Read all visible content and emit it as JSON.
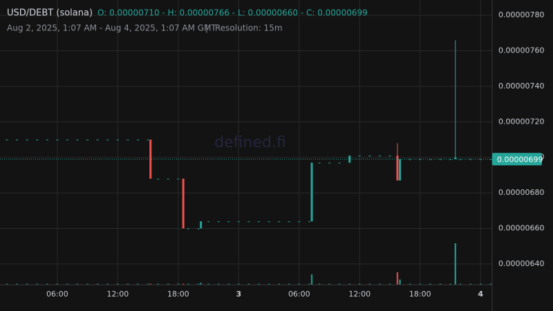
{
  "chart_data": {
    "type": "candlestick",
    "title": "USD/DEBT (solana)",
    "ohlc_text": "O: 0.00000710 - H: 0.00000766 - L: 0.00000660 - C: 0.00000699",
    "subtitle": "Aug 2, 2025, 1:07 AM - Aug 4, 2025, 1:07 AM GMT",
    "separator": "|",
    "resolution": "Resolution: 15m",
    "watermark": "defined.fi",
    "up_color": "#26a69a",
    "down_color": "#ef5350",
    "grid": true,
    "x": [
      1,
      2,
      3,
      4,
      5,
      6,
      7,
      8,
      9,
      10,
      11,
      12,
      13,
      14,
      15,
      15.25,
      16,
      17,
      18,
      18.5,
      19,
      20,
      20.25,
      21,
      22,
      23,
      24,
      25,
      26,
      27,
      28,
      29,
      30,
      31,
      31.25,
      32,
      33,
      34,
      35,
      36,
      37,
      38,
      39,
      39.75,
      40,
      41,
      42,
      43,
      44,
      45,
      45.5,
      46,
      47,
      48,
      49
    ],
    "open": [
      7.1e-06,
      7.1e-06,
      7.1e-06,
      7.1e-06,
      7.1e-06,
      7.1e-06,
      7.1e-06,
      7.1e-06,
      7.1e-06,
      7.1e-06,
      7.1e-06,
      7.1e-06,
      7.1e-06,
      7.1e-06,
      7.1e-06,
      7.1e-06,
      6.88e-06,
      6.88e-06,
      6.88e-06,
      6.88e-06,
      6.6e-06,
      6.6e-06,
      6.6e-06,
      6.64e-06,
      6.64e-06,
      6.64e-06,
      6.64e-06,
      6.64e-06,
      6.64e-06,
      6.64e-06,
      6.64e-06,
      6.64e-06,
      6.64e-06,
      6.64e-06,
      6.64e-06,
      6.97e-06,
      6.97e-06,
      6.97e-06,
      6.97e-06,
      7.01e-06,
      7.01e-06,
      7.01e-06,
      7.01e-06,
      7.01e-06,
      6.87e-06,
      6.99e-06,
      6.99e-06,
      6.99e-06,
      6.99e-06,
      6.99e-06,
      6.99e-06,
      6.99e-06,
      6.99e-06,
      6.99e-06,
      6.99e-06
    ],
    "high": [
      7.1e-06,
      7.1e-06,
      7.1e-06,
      7.1e-06,
      7.1e-06,
      7.1e-06,
      7.1e-06,
      7.1e-06,
      7.1e-06,
      7.1e-06,
      7.1e-06,
      7.1e-06,
      7.1e-06,
      7.1e-06,
      7.1e-06,
      7.1e-06,
      6.88e-06,
      6.88e-06,
      6.88e-06,
      6.88e-06,
      6.6e-06,
      6.6e-06,
      6.64e-06,
      6.64e-06,
      6.64e-06,
      6.64e-06,
      6.64e-06,
      6.64e-06,
      6.64e-06,
      6.64e-06,
      6.64e-06,
      6.64e-06,
      6.64e-06,
      6.64e-06,
      6.97e-06,
      6.97e-06,
      6.97e-06,
      6.97e-06,
      7.01e-06,
      7.01e-06,
      7.01e-06,
      7.01e-06,
      7.01e-06,
      7.08e-06,
      6.99e-06,
      6.99e-06,
      6.99e-06,
      6.99e-06,
      6.99e-06,
      6.99e-06,
      7.66e-06,
      6.99e-06,
      6.99e-06,
      6.99e-06,
      6.99e-06
    ],
    "low": [
      7.1e-06,
      7.1e-06,
      7.1e-06,
      7.1e-06,
      7.1e-06,
      7.1e-06,
      7.1e-06,
      7.1e-06,
      7.1e-06,
      7.1e-06,
      7.1e-06,
      7.1e-06,
      7.1e-06,
      7.1e-06,
      7.1e-06,
      6.88e-06,
      6.88e-06,
      6.88e-06,
      6.88e-06,
      6.6e-06,
      6.6e-06,
      6.6e-06,
      6.6e-06,
      6.64e-06,
      6.64e-06,
      6.64e-06,
      6.64e-06,
      6.64e-06,
      6.64e-06,
      6.64e-06,
      6.64e-06,
      6.64e-06,
      6.64e-06,
      6.64e-06,
      6.64e-06,
      6.97e-06,
      6.97e-06,
      6.97e-06,
      6.97e-06,
      7.01e-06,
      7.01e-06,
      7.01e-06,
      7.01e-06,
      6.87e-06,
      6.87e-06,
      6.99e-06,
      6.99e-06,
      6.99e-06,
      6.99e-06,
      6.99e-06,
      6.99e-06,
      6.99e-06,
      6.99e-06,
      6.99e-06,
      6.99e-06
    ],
    "close": [
      7.1e-06,
      7.1e-06,
      7.1e-06,
      7.1e-06,
      7.1e-06,
      7.1e-06,
      7.1e-06,
      7.1e-06,
      7.1e-06,
      7.1e-06,
      7.1e-06,
      7.1e-06,
      7.1e-06,
      7.1e-06,
      7.1e-06,
      6.88e-06,
      6.88e-06,
      6.88e-06,
      6.88e-06,
      6.6e-06,
      6.6e-06,
      6.6e-06,
      6.64e-06,
      6.64e-06,
      6.64e-06,
      6.64e-06,
      6.64e-06,
      6.64e-06,
      6.64e-06,
      6.64e-06,
      6.64e-06,
      6.64e-06,
      6.64e-06,
      6.64e-06,
      6.97e-06,
      6.97e-06,
      6.97e-06,
      6.97e-06,
      7.01e-06,
      7.01e-06,
      7.01e-06,
      7.01e-06,
      7.01e-06,
      6.87e-06,
      6.99e-06,
      6.99e-06,
      6.99e-06,
      6.99e-06,
      6.99e-06,
      6.99e-06,
      7e-06,
      6.99e-06,
      6.99e-06,
      6.99e-06,
      6.99e-06
    ],
    "volume": [
      1,
      1,
      1,
      1,
      1,
      1,
      1,
      1,
      1,
      1,
      1,
      1,
      1,
      1,
      1,
      1,
      1,
      1,
      1,
      1,
      1,
      1,
      2,
      1,
      1,
      1,
      1,
      1,
      1,
      1,
      1,
      1,
      1,
      1,
      10,
      1,
      1,
      1,
      1,
      1,
      1,
      1,
      1,
      12,
      5,
      1,
      1,
      1,
      1,
      1,
      40,
      1,
      1,
      1,
      1
    ],
    "xlim": [
      1,
      49.15
    ],
    "xticks": [
      {
        "value": 6,
        "label": "06:00"
      },
      {
        "value": 12,
        "label": "12:00"
      },
      {
        "value": 18,
        "label": "18:00"
      },
      {
        "value": 24,
        "label": "3"
      },
      {
        "value": 30,
        "label": "06:00"
      },
      {
        "value": 36,
        "label": "12:00"
      },
      {
        "value": 42,
        "label": "18:00"
      },
      {
        "value": 48,
        "label": "4"
      }
    ],
    "ylim": [
      6.283e-06,
      7.847e-06
    ],
    "yticks": [
      {
        "value": 6.4e-06,
        "label": "0.00000640"
      },
      {
        "value": 6.6e-06,
        "label": "0.00000660"
      },
      {
        "value": 6.8e-06,
        "label": "0.00000680"
      },
      {
        "value": 7e-06,
        "label": "0.00000700"
      },
      {
        "value": 7.2e-06,
        "label": "0.00000720"
      },
      {
        "value": 7.4e-06,
        "label": "0.00000740"
      },
      {
        "value": 7.6e-06,
        "label": "0.00000760"
      },
      {
        "value": 7.8e-06,
        "label": "0.00000780"
      }
    ],
    "price_line": {
      "value": 6.99e-06,
      "label": "0.00000699",
      "color": "#26a69a"
    }
  }
}
